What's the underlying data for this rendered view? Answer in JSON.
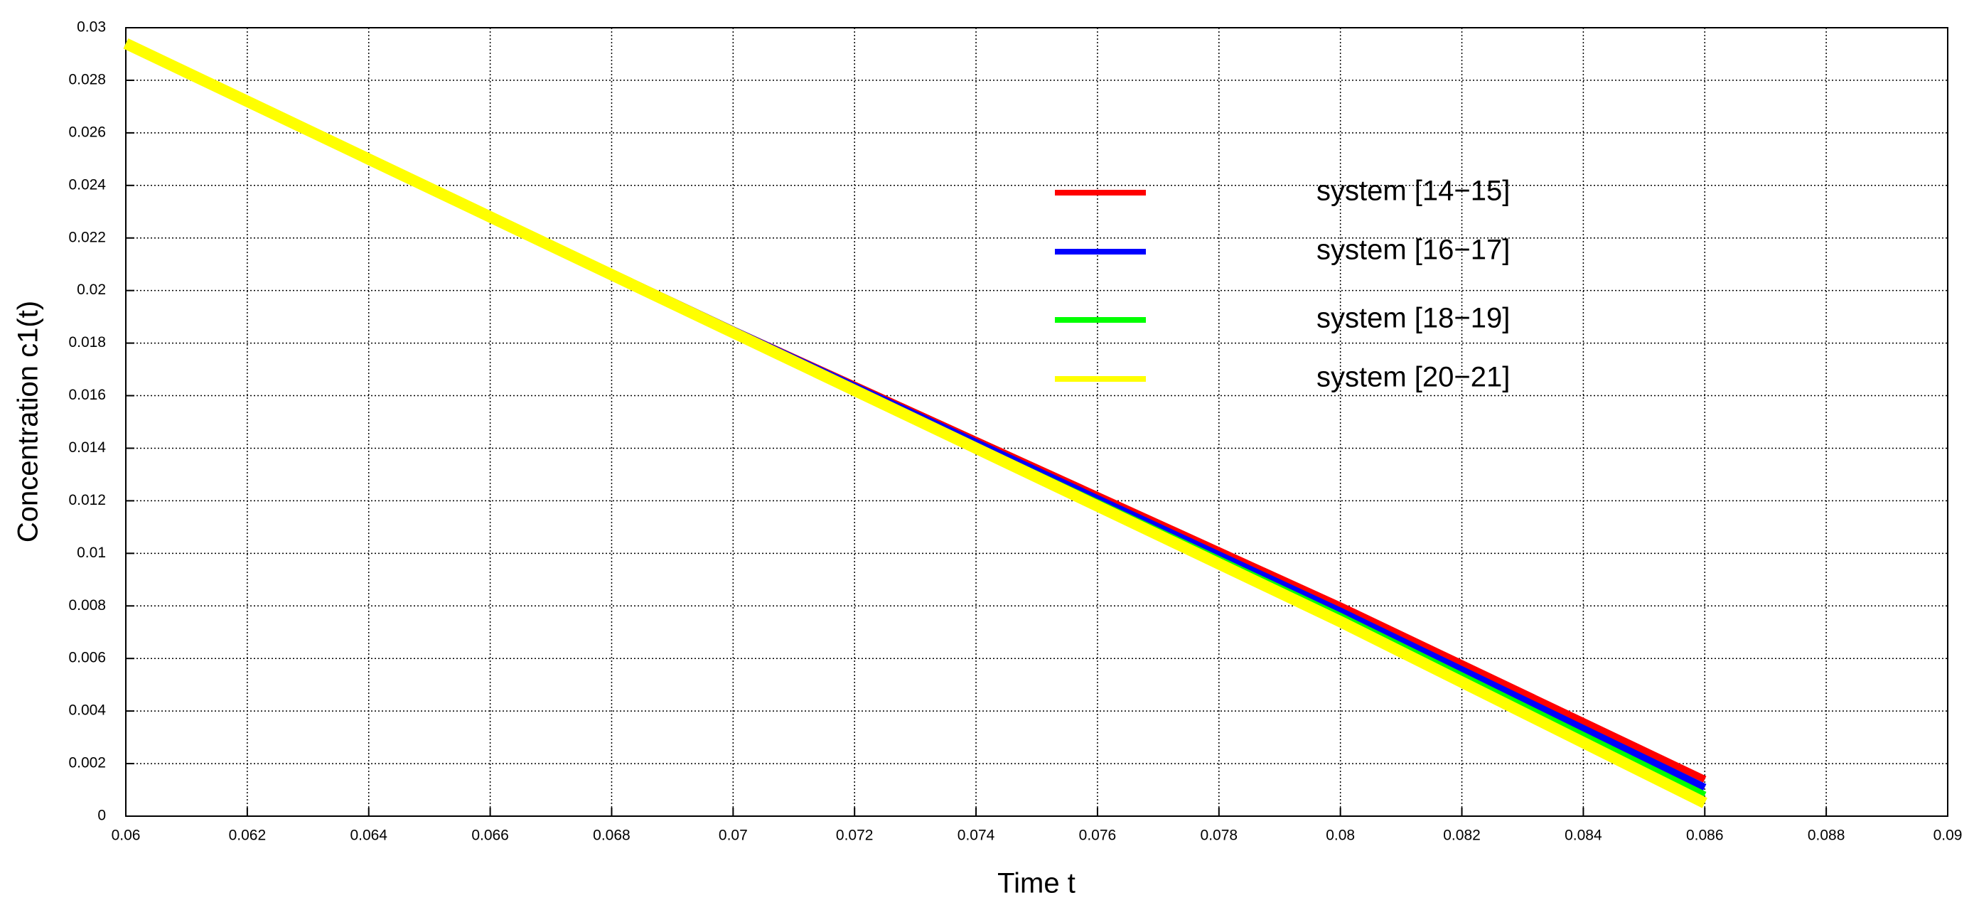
{
  "chart_data": {
    "type": "line",
    "xlabel": "Time t",
    "ylabel": "Concentration c1(t)",
    "x": [
      0.06,
      0.07,
      0.08,
      0.086
    ],
    "series": [
      {
        "name": "system [14−15]",
        "color": "#ff0000",
        "values": [
          0.0294,
          0.0185,
          0.008,
          0.0014
        ]
      },
      {
        "name": "system [16−17]",
        "color": "#0000ff",
        "values": [
          0.0294,
          0.0185,
          0.0078,
          0.0011
        ]
      },
      {
        "name": "system [18−19]",
        "color": "#00ff00",
        "values": [
          0.0294,
          0.0184,
          0.0076,
          0.0008
        ]
      },
      {
        "name": "system [20−21]",
        "color": "#ffff00",
        "values": [
          0.0294,
          0.0184,
          0.0074,
          0.0005
        ]
      }
    ],
    "xlim": [
      0.06,
      0.09
    ],
    "xticks": [
      0.06,
      0.062,
      0.064,
      0.066,
      0.068,
      0.07,
      0.072,
      0.074,
      0.076,
      0.078,
      0.08,
      0.082,
      0.084,
      0.086,
      0.088,
      0.09
    ],
    "ylim": [
      0,
      0.03
    ],
    "yticks": [
      0,
      0.002,
      0.004,
      0.006,
      0.008,
      0.01,
      0.012,
      0.014,
      0.016,
      0.018,
      0.02,
      0.022,
      0.024,
      0.026,
      0.028,
      0.03
    ],
    "grid": true
  }
}
